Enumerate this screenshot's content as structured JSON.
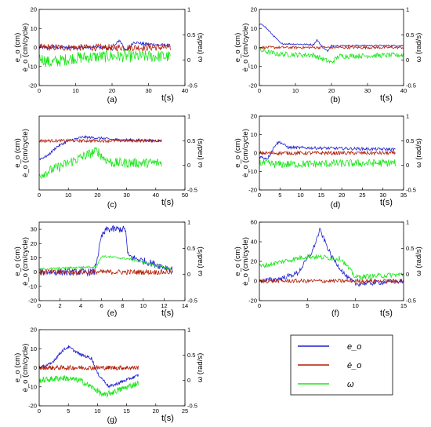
{
  "legend": {
    "entries": [
      {
        "label": "e_o",
        "color": "#1f1fcf"
      },
      {
        "label": "ė_o",
        "color": "#b31d06"
      },
      {
        "label": "ω",
        "color": "#19e619"
      }
    ]
  },
  "axis_text": {
    "ylabel_left_line1": "e_o (cm)",
    "ylabel_left_line2": "ė_o (cm/cycle)",
    "ylabel_right": "ω (rad/s)",
    "xlabel": "t(s)"
  },
  "chart_data": [
    {
      "type": "line",
      "panel_label": "(a)",
      "xlim": [
        0,
        40
      ],
      "xticks": [
        0,
        10,
        20,
        30,
        40
      ],
      "ylim": [
        -20,
        20
      ],
      "yticks": [
        -20,
        -10,
        0,
        10,
        20
      ],
      "y2lim": [
        -0.5,
        1
      ],
      "y2ticks": [
        -0.5,
        0,
        0.5,
        1
      ],
      "x_end": 36,
      "series": [
        {
          "color": "#1f1fcf",
          "axis": "left",
          "noise": 0.8,
          "x": [
            0,
            10,
            18,
            20,
            22,
            24,
            26,
            28,
            36
          ],
          "y": [
            0,
            0,
            0,
            -1,
            4,
            -2,
            3,
            2,
            1
          ]
        },
        {
          "color": "#b31d06",
          "axis": "left",
          "noise": 1.8,
          "x": [
            0,
            6,
            36
          ],
          "y": [
            0,
            0,
            0
          ]
        },
        {
          "color": "#19e619",
          "axis": "right",
          "noise": 0.12,
          "x": [
            0,
            3,
            10,
            20,
            36
          ],
          "y": [
            0.05,
            -0.05,
            0.05,
            0.08,
            0.07
          ]
        }
      ]
    },
    {
      "type": "line",
      "panel_label": "(b)",
      "xlim": [
        0,
        40
      ],
      "xticks": [
        0,
        10,
        20,
        30,
        40
      ],
      "ylim": [
        -20,
        20
      ],
      "yticks": [
        -20,
        -10,
        0,
        10,
        20
      ],
      "y2lim": [
        -0.5,
        1
      ],
      "y2ticks": [
        -0.5,
        0,
        0.5,
        1
      ],
      "x_end": 40,
      "series": [
        {
          "color": "#1f1fcf",
          "axis": "left",
          "noise": 0.4,
          "x": [
            0,
            1,
            3,
            6,
            15,
            16,
            17,
            19,
            20,
            40
          ],
          "y": [
            12,
            12,
            8,
            2,
            1.5,
            4,
            1.5,
            -2,
            1,
            1
          ]
        },
        {
          "color": "#b31d06",
          "axis": "left",
          "noise": 0.7,
          "x": [
            0,
            40
          ],
          "y": [
            0,
            0
          ]
        },
        {
          "color": "#19e619",
          "axis": "right",
          "noise": 0.05,
          "x": [
            0,
            5,
            15,
            20,
            22,
            40
          ],
          "y": [
            0.2,
            0.12,
            0.1,
            -0.05,
            0.08,
            0.1
          ]
        }
      ]
    },
    {
      "type": "line",
      "panel_label": "(c)",
      "xlim": [
        0,
        50
      ],
      "xticks": [
        0,
        10,
        20,
        30,
        40,
        50
      ],
      "ylim": [
        -40,
        20
      ],
      "yticks": [],
      "y2lim": [
        -0.5,
        1
      ],
      "y2ticks": [
        -0.5,
        0,
        0.5,
        1
      ],
      "x_end": 42,
      "series": [
        {
          "color": "#1f1fcf",
          "axis": "left",
          "noise": 1.0,
          "x": [
            0,
            3,
            6,
            10,
            15,
            22,
            25,
            42
          ],
          "y": [
            -15,
            -12,
            -5,
            0,
            3,
            2,
            1,
            0
          ]
        },
        {
          "color": "#b31d06",
          "axis": "left",
          "noise": 1.2,
          "x": [
            0,
            42
          ],
          "y": [
            0,
            0
          ]
        },
        {
          "color": "#19e619",
          "axis": "right",
          "noise": 0.1,
          "x": [
            0,
            10,
            20,
            22,
            25,
            42
          ],
          "y": [
            -0.2,
            0.05,
            0.3,
            0.15,
            0.05,
            0.05
          ]
        }
      ]
    },
    {
      "type": "line",
      "panel_label": "(d)",
      "xlim": [
        0,
        35
      ],
      "xticks": [
        0,
        5,
        10,
        15,
        20,
        25,
        30,
        35
      ],
      "ylim": [
        -20,
        20
      ],
      "yticks": [
        -20,
        -10,
        0,
        10,
        20
      ],
      "y2lim": [
        -0.5,
        1
      ],
      "y2ticks": [
        -0.5,
        0,
        0.5,
        1
      ],
      "x_end": 33,
      "series": [
        {
          "color": "#1f1fcf",
          "axis": "left",
          "noise": 0.8,
          "x": [
            0,
            2,
            4,
            5,
            7,
            33
          ],
          "y": [
            -2,
            -3,
            5,
            6,
            3,
            2
          ]
        },
        {
          "color": "#b31d06",
          "axis": "left",
          "noise": 1.0,
          "x": [
            0,
            33
          ],
          "y": [
            0,
            0
          ]
        },
        {
          "color": "#19e619",
          "axis": "right",
          "noise": 0.08,
          "x": [
            0,
            4,
            33
          ],
          "y": [
            0.05,
            0.02,
            0.05
          ]
        }
      ]
    },
    {
      "type": "line",
      "panel_label": "(e)",
      "xlim": [
        0,
        14
      ],
      "xticks": [
        0,
        2,
        4,
        6,
        8,
        10,
        12,
        14
      ],
      "ylim": [
        -20,
        35
      ],
      "yticks": [
        -20,
        -10,
        0,
        10,
        20,
        30
      ],
      "y2lim": [
        -0.5,
        1
      ],
      "y2ticks": [
        -0.5,
        0,
        0.5,
        1
      ],
      "x_end": 12.8,
      "series": [
        {
          "color": "#1f1fcf",
          "axis": "left",
          "noise": 2.5,
          "x": [
            0,
            5.3,
            6,
            6.5,
            8.3,
            8.5,
            9,
            12.8
          ],
          "y": [
            0,
            0,
            25,
            30,
            30,
            12,
            10,
            2
          ]
        },
        {
          "color": "#b31d06",
          "axis": "left",
          "noise": 1.8,
          "x": [
            0,
            12.8
          ],
          "y": [
            0,
            0
          ]
        },
        {
          "color": "#19e619",
          "axis": "right",
          "noise": 0.02,
          "x": [
            0,
            5.5,
            6,
            8.5,
            12.8
          ],
          "y": [
            0.1,
            0.15,
            0.35,
            0.3,
            0.1
          ]
        }
      ]
    },
    {
      "type": "line",
      "panel_label": "(f)",
      "xlim": [
        0,
        15
      ],
      "xticks": [
        0,
        5,
        10,
        15
      ],
      "ylim": [
        -20,
        60
      ],
      "yticks": [
        -20,
        0,
        20,
        40,
        60
      ],
      "y2lim": [
        -0.5,
        1
      ],
      "y2ticks": [
        -0.5,
        0,
        0.5,
        1
      ],
      "x_end": 15,
      "series": [
        {
          "color": "#1f1fcf",
          "axis": "left",
          "noise": 2.5,
          "x": [
            0,
            2,
            4,
            5.5,
            6.3,
            7.5,
            9,
            10,
            15
          ],
          "y": [
            0,
            2,
            8,
            30,
            52,
            25,
            5,
            -3,
            0
          ]
        },
        {
          "color": "#b31d06",
          "axis": "left",
          "noise": 2.0,
          "x": [
            0,
            15
          ],
          "y": [
            0,
            0
          ]
        },
        {
          "color": "#19e619",
          "axis": "right",
          "noise": 0.05,
          "x": [
            0,
            5,
            8.5,
            10,
            15
          ],
          "y": [
            0.15,
            0.35,
            0.3,
            -0.05,
            0.0
          ]
        }
      ]
    },
    {
      "type": "line",
      "panel_label": "(g)",
      "xlim": [
        0,
        25
      ],
      "xticks": [
        0,
        5,
        10,
        15,
        20,
        25
      ],
      "ylim": [
        -20,
        20
      ],
      "yticks": [
        -20,
        -10,
        0,
        10,
        20
      ],
      "y2lim": [
        -0.5,
        1
      ],
      "y2ticks": [
        -0.5,
        0,
        0.5,
        1
      ],
      "x_end": 17,
      "series": [
        {
          "color": "#1f1fcf",
          "axis": "left",
          "noise": 0.8,
          "x": [
            0,
            2,
            4,
            5,
            7,
            9,
            10,
            12,
            17
          ],
          "y": [
            0,
            2,
            9,
            11,
            7,
            5,
            -3,
            -10,
            -4
          ]
        },
        {
          "color": "#b31d06",
          "axis": "left",
          "noise": 1.2,
          "x": [
            0,
            17
          ],
          "y": [
            0,
            0
          ]
        },
        {
          "color": "#19e619",
          "axis": "right",
          "noise": 0.06,
          "x": [
            0,
            4,
            7,
            10,
            11,
            17
          ],
          "y": [
            0.0,
            0.05,
            0.0,
            -0.2,
            -0.3,
            -0.05
          ]
        }
      ]
    }
  ]
}
